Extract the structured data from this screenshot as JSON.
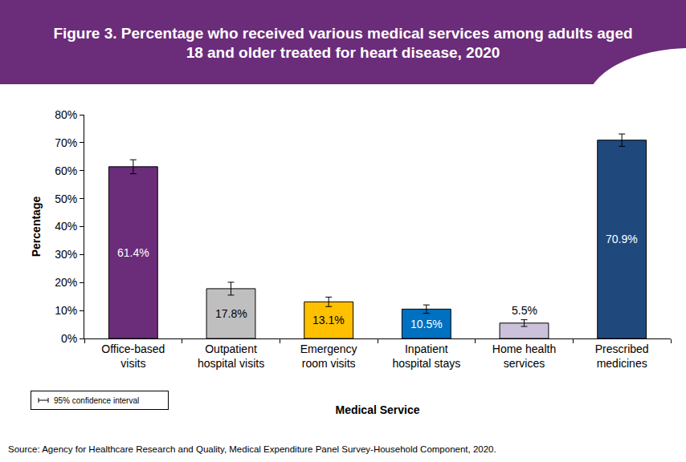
{
  "chart_data": {
    "type": "bar",
    "title": "Figure 3. Percentage who received various medical services among adults aged 18 and older treated for heart disease, 2020",
    "x_label": "Medical Service",
    "y_label": "Percentage",
    "categories": [
      "Office-based\nvisits",
      "Outpatient\nhospital visits",
      "Emergency\nroom visits",
      "Inpatient\nhospital stays",
      "Home health\nservices",
      "Prescribed\nmedicines"
    ],
    "values": [
      61.4,
      17.8,
      13.1,
      10.5,
      5.5,
      70.9
    ],
    "value_labels": [
      "61.4%",
      "17.8%",
      "13.1%",
      "10.5%",
      "5.5%",
      "70.9%"
    ],
    "error": [
      2.5,
      2.3,
      1.7,
      1.5,
      1.2,
      2.2
    ],
    "colors": [
      "#6B2C7A",
      "#BFBFBF",
      "#FFC000",
      "#0070C0",
      "#CCC1DA",
      "#1F497D"
    ],
    "ylim": [
      0,
      80
    ],
    "yticks": [
      {
        "value": 0,
        "label": "0%"
      },
      {
        "value": 10,
        "label": "10%"
      },
      {
        "value": 20,
        "label": "20%"
      },
      {
        "value": 30,
        "label": "30%"
      },
      {
        "value": 40,
        "label": "40%"
      },
      {
        "value": 50,
        "label": "50%"
      },
      {
        "value": 60,
        "label": "60%"
      },
      {
        "value": 70,
        "label": "70%"
      },
      {
        "value": 80,
        "label": "80%"
      }
    ],
    "grid": false,
    "data_labels": true,
    "error_bar_label": "95% confidence interval",
    "source": "Source: Agency for Healthcare Research and Quality, Medical Expenditure Panel Survey-Household Component, 2020."
  }
}
